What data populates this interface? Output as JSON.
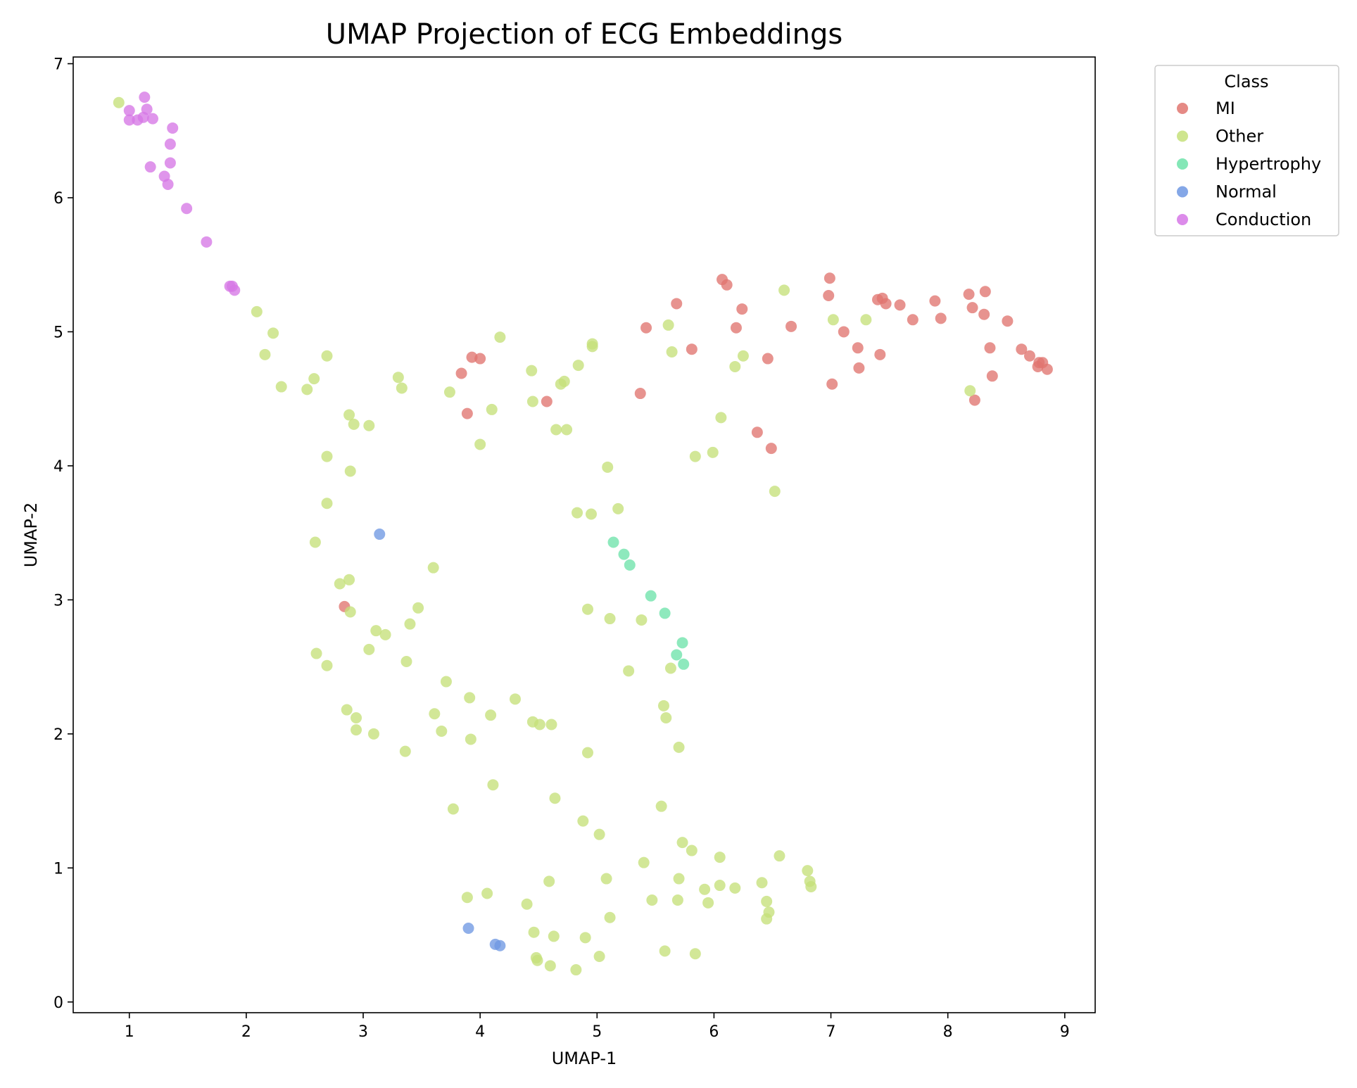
{
  "chart_data": {
    "type": "scatter",
    "title": "UMAP Projection of ECG Embeddings",
    "xlabel": "UMAP-1",
    "ylabel": "UMAP-2",
    "xlim": [
      0.52,
      9.26
    ],
    "ylim": [
      -0.08,
      7.05
    ],
    "xticks": [
      1,
      2,
      3,
      4,
      5,
      6,
      7,
      8,
      9
    ],
    "yticks": [
      0,
      1,
      2,
      3,
      4,
      5,
      6,
      7
    ],
    "grid": false,
    "legend": {
      "title": "Class",
      "placement": "outside-top-right"
    },
    "series": [
      {
        "name": "MI",
        "color": "#e07570",
        "points": [
          [
            3.93,
            4.81
          ],
          [
            4.0,
            4.8
          ],
          [
            3.84,
            4.69
          ],
          [
            3.89,
            4.39
          ],
          [
            4.57,
            4.48
          ],
          [
            2.84,
            2.95
          ],
          [
            5.37,
            4.54
          ],
          [
            5.42,
            5.03
          ],
          [
            5.68,
            5.21
          ],
          [
            5.81,
            4.87
          ],
          [
            6.07,
            5.39
          ],
          [
            6.11,
            5.35
          ],
          [
            6.19,
            5.03
          ],
          [
            6.24,
            5.17
          ],
          [
            6.46,
            4.8
          ],
          [
            6.37,
            4.25
          ],
          [
            6.49,
            4.13
          ],
          [
            6.66,
            5.04
          ],
          [
            6.98,
            5.27
          ],
          [
            6.99,
            5.4
          ],
          [
            7.01,
            4.61
          ],
          [
            7.11,
            5.0
          ],
          [
            7.23,
            4.88
          ],
          [
            7.24,
            4.73
          ],
          [
            7.4,
            5.24
          ],
          [
            7.44,
            5.25
          ],
          [
            7.42,
            4.83
          ],
          [
            7.47,
            5.21
          ],
          [
            7.59,
            5.2
          ],
          [
            7.7,
            5.09
          ],
          [
            7.89,
            5.23
          ],
          [
            7.94,
            5.1
          ],
          [
            8.18,
            5.28
          ],
          [
            8.21,
            5.18
          ],
          [
            8.23,
            4.49
          ],
          [
            8.31,
            5.13
          ],
          [
            8.32,
            5.3
          ],
          [
            8.36,
            4.88
          ],
          [
            8.38,
            4.67
          ],
          [
            8.51,
            5.08
          ],
          [
            8.63,
            4.87
          ],
          [
            8.7,
            4.82
          ],
          [
            8.77,
            4.74
          ],
          [
            8.78,
            4.77
          ],
          [
            8.81,
            4.77
          ],
          [
            8.85,
            4.72
          ]
        ]
      },
      {
        "name": "Other",
        "color": "#c5e07a",
        "points": [
          [
            0.91,
            6.71
          ],
          [
            2.09,
            5.15
          ],
          [
            2.23,
            4.99
          ],
          [
            2.16,
            4.83
          ],
          [
            2.3,
            4.59
          ],
          [
            2.52,
            4.57
          ],
          [
            2.58,
            4.65
          ],
          [
            2.69,
            4.82
          ],
          [
            2.88,
            4.38
          ],
          [
            2.92,
            4.31
          ],
          [
            3.05,
            4.3
          ],
          [
            2.69,
            4.07
          ],
          [
            2.89,
            3.96
          ],
          [
            2.69,
            3.72
          ],
          [
            2.59,
            3.43
          ],
          [
            2.8,
            3.12
          ],
          [
            2.88,
            3.15
          ],
          [
            2.89,
            2.91
          ],
          [
            3.3,
            4.66
          ],
          [
            3.33,
            4.58
          ],
          [
            3.74,
            4.55
          ],
          [
            4.1,
            4.42
          ],
          [
            4.17,
            4.96
          ],
          [
            4.44,
            4.71
          ],
          [
            4.45,
            4.48
          ],
          [
            4.69,
            4.61
          ],
          [
            4.72,
            4.63
          ],
          [
            4.84,
            4.75
          ],
          [
            4.96,
            4.89
          ],
          [
            4.96,
            4.91
          ],
          [
            4.0,
            4.16
          ],
          [
            4.65,
            4.27
          ],
          [
            4.74,
            4.27
          ],
          [
            5.09,
            3.99
          ],
          [
            4.83,
            3.65
          ],
          [
            4.95,
            3.64
          ],
          [
            5.18,
            3.68
          ],
          [
            5.61,
            5.05
          ],
          [
            5.64,
            4.85
          ],
          [
            5.84,
            4.07
          ],
          [
            5.99,
            4.1
          ],
          [
            6.06,
            4.36
          ],
          [
            6.18,
            4.74
          ],
          [
            6.25,
            4.82
          ],
          [
            6.6,
            5.31
          ],
          [
            7.02,
            5.09
          ],
          [
            7.3,
            5.09
          ],
          [
            8.19,
            4.56
          ],
          [
            6.52,
            3.81
          ],
          [
            3.11,
            2.77
          ],
          [
            3.19,
            2.74
          ],
          [
            3.4,
            2.82
          ],
          [
            3.47,
            2.94
          ],
          [
            3.6,
            3.24
          ],
          [
            3.05,
            2.63
          ],
          [
            2.6,
            2.6
          ],
          [
            2.69,
            2.51
          ],
          [
            3.37,
            2.54
          ],
          [
            3.71,
            2.39
          ],
          [
            3.91,
            2.27
          ],
          [
            2.86,
            2.18
          ],
          [
            2.94,
            2.12
          ],
          [
            2.94,
            2.03
          ],
          [
            3.09,
            2.0
          ],
          [
            3.36,
            1.87
          ],
          [
            3.61,
            2.15
          ],
          [
            3.67,
            2.02
          ],
          [
            3.92,
            1.96
          ],
          [
            4.09,
            2.14
          ],
          [
            4.3,
            2.26
          ],
          [
            4.45,
            2.09
          ],
          [
            4.51,
            2.07
          ],
          [
            4.61,
            2.07
          ],
          [
            4.92,
            2.93
          ],
          [
            5.11,
            2.86
          ],
          [
            5.38,
            2.85
          ],
          [
            5.27,
            2.47
          ],
          [
            5.63,
            2.49
          ],
          [
            5.57,
            2.21
          ],
          [
            5.59,
            2.12
          ],
          [
            5.7,
            1.9
          ],
          [
            4.92,
            1.86
          ],
          [
            3.77,
            1.44
          ],
          [
            4.11,
            1.62
          ],
          [
            4.64,
            1.52
          ],
          [
            4.88,
            1.35
          ],
          [
            5.02,
            1.25
          ],
          [
            5.55,
            1.46
          ],
          [
            5.73,
            1.19
          ],
          [
            5.81,
            1.13
          ],
          [
            6.05,
            1.08
          ],
          [
            6.56,
            1.09
          ],
          [
            5.4,
            1.04
          ],
          [
            5.08,
            0.92
          ],
          [
            5.7,
            0.92
          ],
          [
            4.59,
            0.9
          ],
          [
            3.89,
            0.78
          ],
          [
            4.06,
            0.81
          ],
          [
            4.4,
            0.73
          ],
          [
            5.47,
            0.76
          ],
          [
            5.69,
            0.76
          ],
          [
            5.92,
            0.84
          ],
          [
            5.95,
            0.74
          ],
          [
            6.05,
            0.87
          ],
          [
            6.18,
            0.85
          ],
          [
            6.41,
            0.89
          ],
          [
            6.45,
            0.75
          ],
          [
            6.47,
            0.67
          ],
          [
            6.45,
            0.62
          ],
          [
            6.8,
            0.98
          ],
          [
            6.82,
            0.9
          ],
          [
            6.83,
            0.86
          ],
          [
            4.46,
            0.52
          ],
          [
            4.63,
            0.49
          ],
          [
            4.9,
            0.48
          ],
          [
            5.11,
            0.63
          ],
          [
            4.48,
            0.33
          ],
          [
            4.49,
            0.31
          ],
          [
            4.6,
            0.27
          ],
          [
            4.82,
            0.24
          ],
          [
            5.02,
            0.34
          ],
          [
            5.58,
            0.38
          ],
          [
            5.84,
            0.36
          ]
        ]
      },
      {
        "name": "Hypertrophy",
        "color": "#6ee3aa",
        "points": [
          [
            5.14,
            3.43
          ],
          [
            5.23,
            3.34
          ],
          [
            5.28,
            3.26
          ],
          [
            5.46,
            3.03
          ],
          [
            5.58,
            2.9
          ],
          [
            5.73,
            2.68
          ],
          [
            5.68,
            2.59
          ],
          [
            5.74,
            2.52
          ]
        ]
      },
      {
        "name": "Normal",
        "color": "#6f98e3",
        "points": [
          [
            3.14,
            3.49
          ],
          [
            3.9,
            0.55
          ],
          [
            4.13,
            0.43
          ],
          [
            4.17,
            0.42
          ]
        ]
      },
      {
        "name": "Conduction",
        "color": "#d677e6",
        "points": [
          [
            1.0,
            6.65
          ],
          [
            1.0,
            6.58
          ],
          [
            1.07,
            6.58
          ],
          [
            1.12,
            6.6
          ],
          [
            1.13,
            6.75
          ],
          [
            1.15,
            6.66
          ],
          [
            1.2,
            6.59
          ],
          [
            1.37,
            6.52
          ],
          [
            1.35,
            6.4
          ],
          [
            1.35,
            6.26
          ],
          [
            1.18,
            6.23
          ],
          [
            1.3,
            6.16
          ],
          [
            1.33,
            6.1
          ],
          [
            1.49,
            5.92
          ],
          [
            1.66,
            5.67
          ],
          [
            1.86,
            5.34
          ],
          [
            1.88,
            5.34
          ],
          [
            1.9,
            5.31
          ]
        ]
      }
    ]
  }
}
